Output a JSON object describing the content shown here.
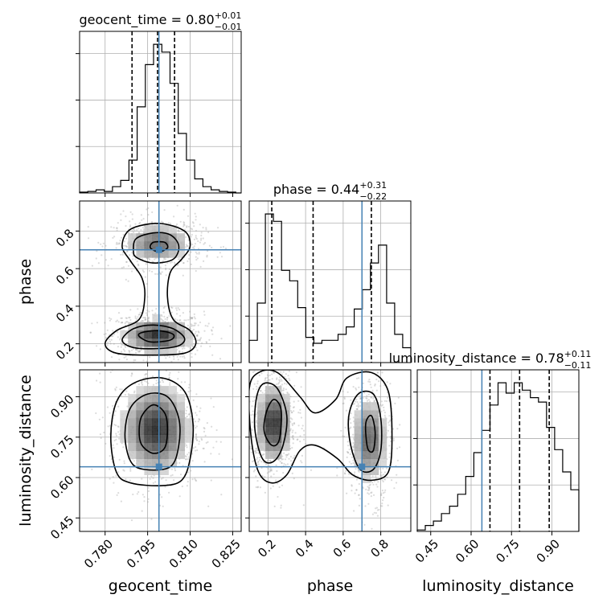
{
  "chart_data": {
    "type": "corner",
    "truth_color": "#4682b4",
    "parameters": [
      {
        "name": "geocent_time",
        "title": "geocent_time = 0.80",
        "title_plus": "+0.01",
        "title_minus": "−0.01",
        "median": 0.8,
        "err_plus": 0.01,
        "err_minus": 0.01,
        "truth": 0.799,
        "range": [
          0.771,
          0.828
        ],
        "ticks": [
          0.78,
          0.795,
          0.81,
          0.825
        ],
        "tick_labels": [
          "0.780",
          "0.795",
          "0.810",
          "0.825"
        ],
        "quantile_lines": [
          0.7895,
          0.7985,
          0.8045
        ],
        "hist_edges_start": 0.771,
        "hist_bin_width": 0.0029,
        "hist_counts": [
          0.5,
          1,
          2,
          1,
          4,
          8,
          21,
          55,
          82,
          95,
          90,
          70,
          38,
          21,
          9,
          4,
          2,
          1,
          0.5,
          0
        ]
      },
      {
        "name": "phase",
        "title": "phase = 0.44",
        "title_plus": "+0.31",
        "title_minus": "−0.22",
        "median": 0.44,
        "err_plus": 0.31,
        "err_minus": 0.22,
        "truth": 0.7,
        "range": [
          0.1,
          0.96
        ],
        "ticks": [
          0.2,
          0.4,
          0.6,
          0.8
        ],
        "tick_labels": [
          "0.2",
          "0.4",
          "0.6",
          "0.8"
        ],
        "quantile_lines": [
          0.22,
          0.44,
          0.75
        ],
        "hist_edges_start": 0.1,
        "hist_bin_width": 0.043,
        "hist_counts": [
          15,
          40,
          100,
          95,
          62,
          55,
          37,
          17,
          13,
          15,
          15,
          19,
          24,
          36,
          49,
          67,
          79,
          40,
          19,
          10
        ]
      },
      {
        "name": "luminosity_distance",
        "title": "luminosity_distance = 0.78",
        "title_plus": "+0.11",
        "title_minus": "−0.11",
        "median": 0.78,
        "err_plus": 0.11,
        "err_minus": 0.11,
        "truth": 0.64,
        "range": [
          0.4,
          1.0
        ],
        "ticks": [
          0.45,
          0.6,
          0.75,
          0.9
        ],
        "tick_labels": [
          "0.45",
          "0.60",
          "0.75",
          "0.90"
        ],
        "quantile_lines": [
          0.67,
          0.78,
          0.89
        ],
        "hist_edges_start": 0.4,
        "hist_bin_width": 0.03,
        "hist_counts": [
          1,
          4,
          7,
          12,
          17,
          25,
          37,
          53,
          68,
          85,
          100,
          93,
          100,
          95,
          90,
          87,
          70,
          55,
          40,
          28
        ]
      }
    ],
    "pairs": [
      {
        "x": "geocent_time",
        "y": "phase",
        "modes": [
          {
            "x": 0.7985,
            "y": 0.245,
            "sx": 0.0065,
            "sy": 0.05,
            "w": 1.0
          },
          {
            "x": 0.7985,
            "y": 0.735,
            "sx": 0.0065,
            "sy": 0.055,
            "w": 0.7
          }
        ],
        "contours": [
          [
            [
              0.78,
              0.2
            ],
            [
              0.784,
              0.15
            ],
            [
              0.796,
              0.14
            ],
            [
              0.808,
              0.15
            ],
            [
              0.812,
              0.2
            ],
            [
              0.81,
              0.27
            ],
            [
              0.804,
              0.33
            ],
            [
              0.802,
              0.45
            ],
            [
              0.803,
              0.58
            ],
            [
              0.807,
              0.65
            ],
            [
              0.81,
              0.72
            ],
            [
              0.808,
              0.8
            ],
            [
              0.799,
              0.84
            ],
            [
              0.789,
              0.81
            ],
            [
              0.786,
              0.72
            ],
            [
              0.789,
              0.64
            ],
            [
              0.793,
              0.55
            ],
            [
              0.794,
              0.45
            ],
            [
              0.792,
              0.33
            ],
            [
              0.784,
              0.27
            ]
          ],
          [
            [
              0.786,
              0.22
            ],
            [
              0.79,
              0.18
            ],
            [
              0.799,
              0.175
            ],
            [
              0.806,
              0.19
            ],
            [
              0.808,
              0.23
            ],
            [
              0.804,
              0.28
            ],
            [
              0.797,
              0.3
            ],
            [
              0.79,
              0.28
            ]
          ],
          [
            [
              0.791,
              0.66
            ],
            [
              0.797,
              0.63
            ],
            [
              0.804,
              0.65
            ],
            [
              0.806,
              0.72
            ],
            [
              0.803,
              0.78
            ],
            [
              0.797,
              0.79
            ],
            [
              0.791,
              0.76
            ],
            [
              0.79,
              0.7
            ]
          ],
          [
            [
              0.792,
              0.24
            ],
            [
              0.796,
              0.21
            ],
            [
              0.803,
              0.22
            ],
            [
              0.804,
              0.25
            ],
            [
              0.799,
              0.27
            ],
            [
              0.793,
              0.26
            ]
          ],
          [
            [
              0.796,
              0.71
            ],
            [
              0.799,
              0.69
            ],
            [
              0.802,
              0.71
            ],
            [
              0.801,
              0.74
            ],
            [
              0.797,
              0.74
            ]
          ]
        ]
      },
      {
        "x": "geocent_time",
        "y": "luminosity_distance",
        "modes": [
          {
            "x": 0.798,
            "y": 0.78,
            "sx": 0.0065,
            "sy": 0.09,
            "w": 1.0
          }
        ],
        "contours": [
          [
            [
              0.784,
              0.62
            ],
            [
              0.789,
              0.58
            ],
            [
              0.8,
              0.57
            ],
            [
              0.807,
              0.59
            ],
            [
              0.81,
              0.67
            ],
            [
              0.811,
              0.8
            ],
            [
              0.808,
              0.92
            ],
            [
              0.8,
              0.97
            ],
            [
              0.79,
              0.95
            ],
            [
              0.784,
              0.88
            ],
            [
              0.782,
              0.75
            ]
          ],
          [
            [
              0.789,
              0.66
            ],
            [
              0.794,
              0.63
            ],
            [
              0.803,
              0.64
            ],
            [
              0.806,
              0.72
            ],
            [
              0.806,
              0.82
            ],
            [
              0.802,
              0.9
            ],
            [
              0.795,
              0.91
            ],
            [
              0.789,
              0.86
            ],
            [
              0.787,
              0.76
            ]
          ],
          [
            [
              0.793,
              0.72
            ],
            [
              0.797,
              0.69
            ],
            [
              0.801,
              0.71
            ],
            [
              0.802,
              0.78
            ],
            [
              0.801,
              0.84
            ],
            [
              0.797,
              0.87
            ],
            [
              0.793,
              0.83
            ],
            [
              0.792,
              0.77
            ]
          ]
        ]
      },
      {
        "x": "phase",
        "y": "luminosity_distance",
        "modes": [
          {
            "x": 0.23,
            "y": 0.8,
            "sx": 0.05,
            "sy": 0.08,
            "w": 1.0
          },
          {
            "x": 0.74,
            "y": 0.74,
            "sx": 0.05,
            "sy": 0.09,
            "w": 0.75
          }
        ],
        "contours": [
          [
            [
              0.1,
              0.93
            ],
            [
              0.15,
              0.99
            ],
            [
              0.25,
              0.99
            ],
            [
              0.37,
              0.9
            ],
            [
              0.45,
              0.84
            ],
            [
              0.56,
              0.89
            ],
            [
              0.62,
              0.97
            ],
            [
              0.75,
              0.99
            ],
            [
              0.84,
              0.92
            ],
            [
              0.86,
              0.75
            ],
            [
              0.84,
              0.62
            ],
            [
              0.75,
              0.59
            ],
            [
              0.65,
              0.61
            ],
            [
              0.57,
              0.67
            ],
            [
              0.45,
              0.72
            ],
            [
              0.37,
              0.7
            ],
            [
              0.3,
              0.61
            ],
            [
              0.22,
              0.58
            ],
            [
              0.15,
              0.62
            ],
            [
              0.11,
              0.75
            ]
          ],
          [
            [
              0.14,
              0.9
            ],
            [
              0.18,
              0.95
            ],
            [
              0.25,
              0.93
            ],
            [
              0.3,
              0.83
            ],
            [
              0.28,
              0.72
            ],
            [
              0.23,
              0.66
            ],
            [
              0.17,
              0.67
            ],
            [
              0.13,
              0.78
            ]
          ],
          [
            [
              0.63,
              0.83
            ],
            [
              0.68,
              0.91
            ],
            [
              0.76,
              0.91
            ],
            [
              0.8,
              0.82
            ],
            [
              0.8,
              0.7
            ],
            [
              0.76,
              0.63
            ],
            [
              0.69,
              0.63
            ],
            [
              0.64,
              0.72
            ]
          ],
          [
            [
              0.19,
              0.84
            ],
            [
              0.23,
              0.89
            ],
            [
              0.27,
              0.85
            ],
            [
              0.26,
              0.74
            ],
            [
              0.22,
              0.72
            ],
            [
              0.18,
              0.77
            ]
          ],
          [
            [
              0.72,
              0.8
            ],
            [
              0.75,
              0.83
            ],
            [
              0.77,
              0.77
            ],
            [
              0.76,
              0.7
            ],
            [
              0.73,
              0.71
            ]
          ]
        ]
      }
    ]
  }
}
